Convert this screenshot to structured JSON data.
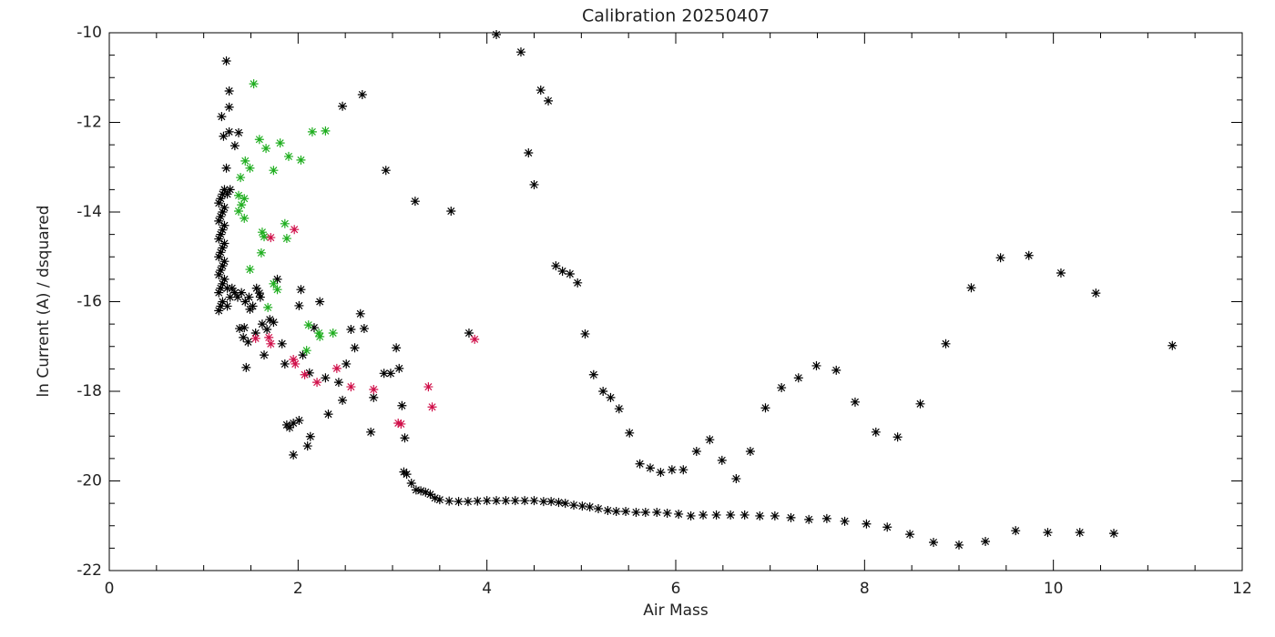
{
  "chart_data": {
    "type": "scatter",
    "title": "Calibration 20250407",
    "x_label": "Air Mass",
    "y_label": "ln Current (A) / dsquared",
    "xlim": [
      0,
      12
    ],
    "ylim": [
      -22,
      -10
    ],
    "xticks": [
      0,
      2,
      4,
      6,
      8,
      10,
      12
    ],
    "yticks": [
      -22,
      -20,
      -18,
      -16,
      -14,
      -12,
      -10
    ],
    "marker": "asterisk",
    "series": [
      {
        "color": "#000000",
        "x": [
          1.24,
          4.1,
          4.36,
          4.57,
          4.65,
          4.44,
          4.5,
          4.73,
          4.8,
          4.88,
          4.96,
          5.04,
          5.13,
          5.23,
          5.31,
          5.4,
          5.51,
          5.62,
          5.73,
          5.84,
          5.96,
          6.08,
          6.22,
          6.36,
          6.49,
          6.64,
          6.79,
          6.95,
          7.12,
          7.3,
          7.49,
          7.7,
          7.9,
          8.12,
          8.35,
          8.59,
          8.86,
          9.13,
          9.44,
          9.74,
          10.08,
          10.45,
          11.26,
          10.64,
          10.28,
          9.94,
          9.6,
          9.28,
          9.0,
          8.73,
          8.48,
          8.24,
          8.02,
          7.79,
          7.6,
          7.41,
          7.22,
          7.05,
          6.89,
          6.73,
          6.58,
          6.43,
          6.29,
          6.16,
          6.03,
          5.91,
          5.8,
          5.68,
          5.58,
          5.47,
          5.37,
          5.28,
          5.18,
          5.09,
          5.01,
          4.92,
          4.83,
          4.76,
          4.68,
          4.6,
          4.5,
          4.4,
          4.3,
          4.2,
          4.1,
          4.0,
          3.9,
          3.8,
          3.7,
          3.6,
          3.5,
          3.45,
          3.4,
          3.35,
          3.3,
          3.25,
          3.2,
          3.15,
          3.12,
          2.93,
          3.24,
          3.62,
          2.47,
          2.68,
          3.81,
          3.04,
          3.07,
          3.1,
          3.13,
          2.98,
          2.91,
          2.8,
          2.77,
          2.7,
          2.66,
          2.6,
          2.56,
          2.51,
          2.47,
          2.43,
          2.32,
          2.29,
          2.23,
          2.17,
          2.12,
          2.05,
          2.03,
          2.01,
          2.01,
          1.95,
          1.95,
          2.1,
          2.13,
          1.91,
          1.88,
          1.86,
          1.83,
          1.74,
          1.67,
          1.64,
          1.59,
          1.49,
          1.45,
          1.43,
          1.37,
          1.33,
          1.27,
          1.21,
          1.19,
          1.27,
          1.27,
          1.24,
          1.16,
          1.16,
          1.16,
          1.16,
          1.16,
          1.16,
          1.16,
          1.18,
          1.18,
          1.18,
          1.18,
          1.18,
          1.18,
          1.18,
          1.2,
          1.2,
          1.2,
          1.2,
          1.2,
          1.2,
          1.2,
          1.22,
          1.22,
          1.22,
          1.22,
          1.22,
          1.22,
          1.25,
          1.25,
          1.25,
          1.28,
          1.28,
          1.3,
          1.33,
          1.36,
          1.4,
          1.44,
          1.48,
          1.52,
          1.56,
          1.6,
          1.38,
          1.42,
          1.47,
          1.55,
          1.62,
          1.7,
          1.78
        ],
        "y": [
          -10.63,
          -10.04,
          -10.43,
          -11.28,
          -11.52,
          -12.68,
          -13.39,
          -15.2,
          -15.32,
          -15.38,
          -15.58,
          -16.72,
          -17.63,
          -18.0,
          -18.14,
          -18.39,
          -18.93,
          -19.62,
          -19.71,
          -19.81,
          -19.75,
          -19.75,
          -19.34,
          -19.08,
          -19.54,
          -19.95,
          -19.34,
          -18.37,
          -17.92,
          -17.7,
          -17.43,
          -17.53,
          -18.24,
          -18.91,
          -19.02,
          -18.28,
          -16.94,
          -15.69,
          -15.02,
          -14.97,
          -15.36,
          -15.81,
          -16.98,
          -21.17,
          -21.15,
          -21.15,
          -21.11,
          -21.35,
          -21.43,
          -21.37,
          -21.19,
          -21.03,
          -20.96,
          -20.9,
          -20.84,
          -20.86,
          -20.82,
          -20.78,
          -20.78,
          -20.76,
          -20.76,
          -20.76,
          -20.76,
          -20.78,
          -20.74,
          -20.72,
          -20.7,
          -20.7,
          -20.7,
          -20.68,
          -20.68,
          -20.66,
          -20.62,
          -20.58,
          -20.56,
          -20.54,
          -20.5,
          -20.48,
          -20.46,
          -20.46,
          -20.44,
          -20.44,
          -20.44,
          -20.44,
          -20.44,
          -20.44,
          -20.45,
          -20.46,
          -20.46,
          -20.45,
          -20.42,
          -20.38,
          -20.3,
          -20.25,
          -20.22,
          -20.2,
          -20.05,
          -19.85,
          -19.8,
          -13.07,
          -13.76,
          -13.98,
          -11.64,
          -11.38,
          -16.7,
          -17.03,
          -17.49,
          -18.32,
          -19.04,
          -17.6,
          -17.6,
          -18.14,
          -18.91,
          -16.6,
          -16.27,
          -17.03,
          -16.62,
          -17.39,
          -18.2,
          -17.8,
          -18.51,
          -17.7,
          -16.0,
          -16.58,
          -17.59,
          -17.19,
          -15.73,
          -16.09,
          -18.65,
          -18.71,
          -19.42,
          -19.22,
          -19.01,
          -18.81,
          -18.75,
          -17.39,
          -16.94,
          -16.46,
          -16.62,
          -17.19,
          -15.81,
          -16.17,
          -17.47,
          -16.58,
          -12.23,
          -12.52,
          -12.21,
          -12.31,
          -11.87,
          -11.3,
          -11.66,
          -13.02,
          -13.8,
          -14.2,
          -14.6,
          -15.0,
          -15.4,
          -15.8,
          -16.2,
          -13.7,
          -14.1,
          -14.5,
          -14.9,
          -15.3,
          -15.7,
          -16.1,
          -13.6,
          -14.0,
          -14.4,
          -14.8,
          -15.2,
          -15.6,
          -16.0,
          -13.5,
          -13.9,
          -14.3,
          -14.7,
          -15.1,
          -15.5,
          -13.6,
          -15.7,
          -16.1,
          -13.5,
          -15.9,
          -15.7,
          -15.8,
          -15.9,
          -15.8,
          -16.0,
          -15.9,
          -16.1,
          -15.7,
          -15.9,
          -16.6,
          -16.8,
          -16.9,
          -16.7,
          -16.5,
          -16.4,
          -15.5
        ]
      },
      {
        "color": "#1fae1f",
        "x": [
          1.53,
          1.59,
          1.44,
          1.49,
          1.66,
          1.74,
          1.81,
          1.9,
          2.03,
          2.15,
          2.29,
          1.39,
          1.37,
          1.4,
          1.43,
          1.37,
          1.43,
          1.62,
          1.64,
          1.86,
          1.88,
          1.61,
          1.49,
          1.74,
          1.78,
          2.11,
          2.22,
          2.23,
          2.37,
          2.09,
          1.68
        ],
        "y": [
          -11.14,
          -12.38,
          -12.86,
          -13.02,
          -12.58,
          -13.07,
          -12.46,
          -12.76,
          -12.84,
          -12.21,
          -12.19,
          -13.23,
          -13.63,
          -13.84,
          -14.14,
          -13.98,
          -13.7,
          -14.45,
          -14.55,
          -14.26,
          -14.59,
          -14.91,
          -15.28,
          -15.6,
          -15.73,
          -16.52,
          -16.7,
          -16.78,
          -16.7,
          -17.09,
          -16.13
        ]
      },
      {
        "color": "#d0104a",
        "x": [
          1.96,
          1.71,
          1.69,
          1.71,
          1.55,
          1.95,
          1.97,
          2.07,
          2.2,
          2.41,
          2.56,
          2.8,
          3.06,
          3.09,
          3.38,
          3.42,
          3.87
        ],
        "y": [
          -14.39,
          -14.57,
          -16.8,
          -16.94,
          -16.82,
          -17.29,
          -17.39,
          -17.63,
          -17.8,
          -17.49,
          -17.9,
          -17.96,
          -18.71,
          -18.73,
          -17.9,
          -18.35,
          -16.84
        ]
      }
    ]
  }
}
